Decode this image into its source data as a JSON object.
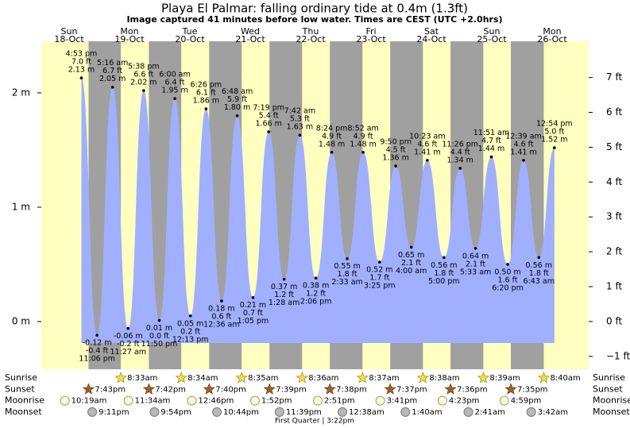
{
  "chart_data": {
    "type": "tide",
    "title": "Playa El Palmar: falling  ordinary tide at 0.4m (1.3ft)",
    "subtitle": "Image captured 41 minutes before low water. Times are CEST (UTC +2.0hrs)",
    "days": [
      {
        "name": "Sun",
        "date": "18-Oct"
      },
      {
        "name": "Mon",
        "date": "19-Oct"
      },
      {
        "name": "Tue",
        "date": "20-Oct"
      },
      {
        "name": "Wed",
        "date": "21-Oct"
      },
      {
        "name": "Thu",
        "date": "22-Oct"
      },
      {
        "name": "Fri",
        "date": "23-Oct"
      },
      {
        "name": "Sat",
        "date": "24-Oct"
      },
      {
        "name": "Sun",
        "date": "25-Oct"
      },
      {
        "name": "Mon",
        "date": "26-Oct"
      }
    ],
    "ylim": [
      -0.417,
      2.451
    ],
    "yticks": [
      {
        "value": 0,
        "label": "0 m"
      },
      {
        "value": 1,
        "label": "1 m"
      },
      {
        "value": 2,
        "label": "2 m"
      }
    ],
    "y2lim": [
      -1.37,
      8.04
    ],
    "y2ticks": [
      {
        "value": -1,
        "label": "−1 ft"
      },
      {
        "value": 0,
        "label": "0 ft"
      },
      {
        "value": 1,
        "label": "1 ft"
      },
      {
        "value": 2,
        "label": "2 ft"
      },
      {
        "value": 3,
        "label": "3 ft"
      },
      {
        "value": 4,
        "label": "4 ft"
      },
      {
        "value": 5,
        "label": "5 ft"
      },
      {
        "value": 6,
        "label": "6 ft"
      },
      {
        "value": 7,
        "label": "7 ft"
      }
    ],
    "tides": {
      "color": "#a0b0ff",
      "times": [
        "4:53 pm",
        "11:06 pm",
        "5:16 am",
        "11:27 am",
        "5:38 pm",
        "11:50 pm",
        "6:00 am",
        "12:13 pm",
        "6:26 pm",
        "12:36 am",
        "6:48 am",
        "1:05 pm",
        "7:19 pm",
        "1:28 am",
        "7:42 am",
        "2:06 pm",
        "8:24 pm",
        "2:33 am",
        "8:52 am",
        "3:25 pm",
        "9:50 pm",
        "4:00 am",
        "10:23 am",
        "5:00 pm",
        "11:26 pm",
        "5:33 am",
        "11:51 am",
        "6:20 pm",
        "12:39 am",
        "6:43 am",
        "12:54 pm"
      ],
      "values": [
        2.13,
        -0.12,
        2.05,
        -0.06,
        2.02,
        0.01,
        1.95,
        0.05,
        1.86,
        0.18,
        1.8,
        0.21,
        1.66,
        0.37,
        1.63,
        0.38,
        1.48,
        0.55,
        1.48,
        0.52,
        1.36,
        0.65,
        1.41,
        0.56,
        1.34,
        0.64,
        1.44,
        0.5,
        1.41,
        0.56,
        1.52
      ],
      "value_labels": [
        "2.13 m",
        "-0.12 m",
        "2.05 m",
        "-0.06 m",
        "2.02 m",
        "0.01 m",
        "1.95 m",
        "0.05 m",
        "1.86 m",
        "0.18 m",
        "1.80 m",
        "0.21 m",
        "1.66 m",
        "0.37 m",
        "1.63 m",
        "0.38 m",
        "1.48 m",
        "0.55 m",
        "1.48 m",
        "0.52 m",
        "1.36 m",
        "0.65 m",
        "1.41 m",
        "0.56 m",
        "1.34 m",
        "0.64 m",
        "1.44 m",
        "0.50 m",
        "1.41 m",
        "0.56 m",
        "1.52 m"
      ],
      "ft_labels": [
        "7.0 ft",
        "-0.4 ft",
        "6.7 ft",
        "-0.2 ft",
        "6.6 ft",
        "0.0 ft",
        "6.4 ft",
        "0.2 ft",
        "6.1 ft",
        "0.6 ft",
        "5.9 ft",
        "0.7 ft",
        "5.4 ft",
        "1.2 ft",
        "5.3 ft",
        "1.2 ft",
        "4.9 ft",
        "1.8 ft",
        "4.9 ft",
        "1.7 ft",
        "4.5 ft",
        "2.1 ft",
        "4.6 ft",
        "1.8 ft",
        "4.4 ft",
        "2.1 ft",
        "4.7 ft",
        "1.6 ft",
        "4.6 ft",
        "1.8 ft",
        "5.0 ft"
      ]
    },
    "rows": [
      {
        "name": "Sunrise",
        "times": [
          null,
          "8:33am",
          "8:34am",
          "8:35am",
          "8:36am",
          "8:37am",
          "8:38am",
          "8:39am",
          "8:40am"
        ]
      },
      {
        "name": "Sunset",
        "times": [
          "7:43pm",
          "7:42pm",
          "7:40pm",
          "7:39pm",
          "7:38pm",
          "7:37pm",
          "7:36pm",
          "7:35pm",
          null
        ]
      },
      {
        "name": "Moonrise",
        "times": [
          "10:19am",
          "11:34am",
          "12:46pm",
          "1:52pm",
          "2:51pm",
          "3:41pm",
          "4:23pm",
          "4:59pm",
          null
        ]
      },
      {
        "name": "Moonset",
        "times": [
          "9:11pm",
          "9:54pm",
          "10:44pm",
          "11:39pm",
          null,
          "12:38am",
          "1:40am",
          "2:41am",
          "3:42am"
        ]
      }
    ],
    "moon_phase": "First Quarter | 3:22pm"
  }
}
